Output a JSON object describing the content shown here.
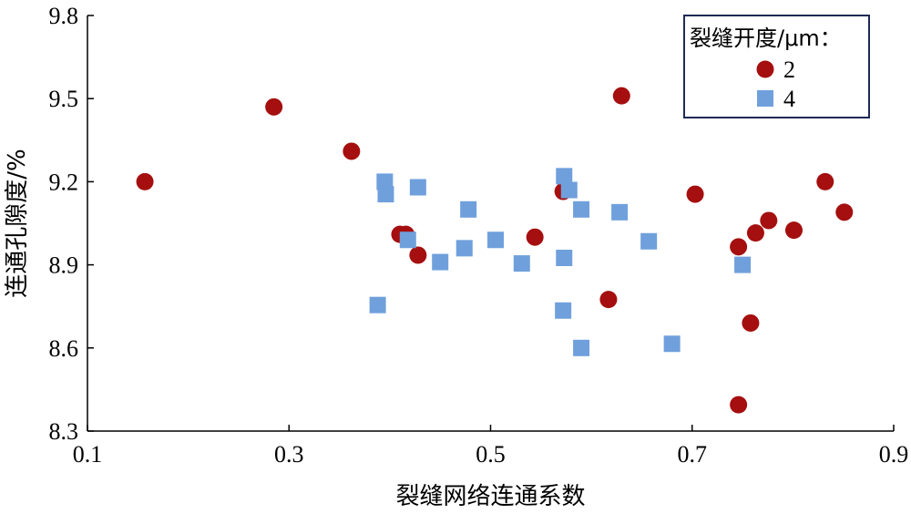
{
  "chart_data": {
    "type": "scatter",
    "title": "",
    "xlabel": "裂缝网络连通系数",
    "ylabel": "连通孔隙度/%",
    "xlim": [
      0.1,
      0.9
    ],
    "ylim": [
      8.3,
      9.8
    ],
    "x_ticks": [
      "0.1",
      "0.3",
      "0.5",
      "0.7",
      "0.9"
    ],
    "y_ticks": [
      "8.3",
      "8.6",
      "8.9",
      "9.2",
      "9.5",
      "9.8"
    ],
    "grid": false,
    "legend": {
      "title": "裂缝开度/μm：",
      "position": "top-right"
    },
    "series": [
      {
        "name": "2",
        "marker": "circle",
        "color": "#a50f0f",
        "points": [
          [
            0.157,
            9.2
          ],
          [
            0.285,
            9.47
          ],
          [
            0.362,
            9.31
          ],
          [
            0.41,
            9.01
          ],
          [
            0.416,
            9.01
          ],
          [
            0.428,
            8.935
          ],
          [
            0.544,
            9.0
          ],
          [
            0.572,
            9.165
          ],
          [
            0.617,
            8.775
          ],
          [
            0.63,
            9.51
          ],
          [
            0.703,
            9.155
          ],
          [
            0.746,
            8.965
          ],
          [
            0.758,
            8.69
          ],
          [
            0.763,
            9.015
          ],
          [
            0.776,
            9.06
          ],
          [
            0.801,
            9.025
          ],
          [
            0.832,
            9.2
          ],
          [
            0.851,
            9.09
          ],
          [
            0.746,
            8.395
          ]
        ]
      },
      {
        "name": "4",
        "marker": "square",
        "color": "#6fa0dc",
        "points": [
          [
            0.388,
            8.755
          ],
          [
            0.395,
            9.2
          ],
          [
            0.396,
            9.155
          ],
          [
            0.418,
            8.99
          ],
          [
            0.428,
            9.18
          ],
          [
            0.45,
            8.91
          ],
          [
            0.474,
            8.96
          ],
          [
            0.478,
            9.1
          ],
          [
            0.505,
            8.99
          ],
          [
            0.531,
            8.905
          ],
          [
            0.573,
            9.22
          ],
          [
            0.578,
            9.17
          ],
          [
            0.573,
            8.925
          ],
          [
            0.572,
            8.735
          ],
          [
            0.59,
            9.1
          ],
          [
            0.59,
            8.6
          ],
          [
            0.628,
            9.09
          ],
          [
            0.657,
            8.985
          ],
          [
            0.68,
            8.615
          ],
          [
            0.75,
            8.9
          ]
        ]
      }
    ]
  }
}
